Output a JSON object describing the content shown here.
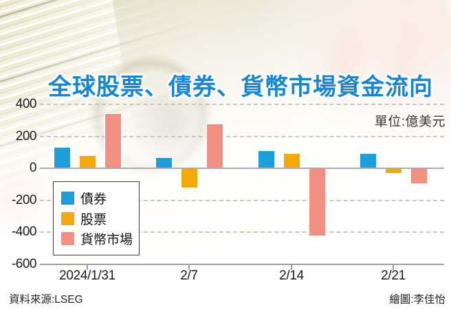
{
  "chart_data": {
    "type": "bar",
    "title": "全球股票、債券、貨幣市場資金流向",
    "unit_label": "單位:億美元",
    "categories": [
      "2024/1/31",
      "2/7",
      "2/14",
      "2/21"
    ],
    "series": [
      {
        "key": "bonds",
        "name": "債券",
        "color": "#1b9ed9",
        "values": [
          135,
          70,
          110,
          95
        ]
      },
      {
        "key": "stocks",
        "name": "股票",
        "color": "#f2a90a",
        "values": [
          80,
          -120,
          95,
          -30
        ]
      },
      {
        "key": "money-market",
        "name": "貨幣市場",
        "color": "#f28f80",
        "values": [
          345,
          280,
          -420,
          -95
        ]
      }
    ],
    "yticks": [
      400,
      200,
      0,
      -200,
      -400,
      -600
    ],
    "ylim": [
      -600,
      400
    ],
    "grid": "horizontal-dashed",
    "legend_position": "inside-bottom-left"
  },
  "footer": {
    "source": "資料來源:LSEG",
    "credit": "繪圖:李佳怡"
  },
  "ui_colors": {
    "title_blue": "#1486d4",
    "axis_gray": "#9c9c9c",
    "zero_line_gray": "#ababab",
    "gridline_gray": "#c8c6c0"
  }
}
